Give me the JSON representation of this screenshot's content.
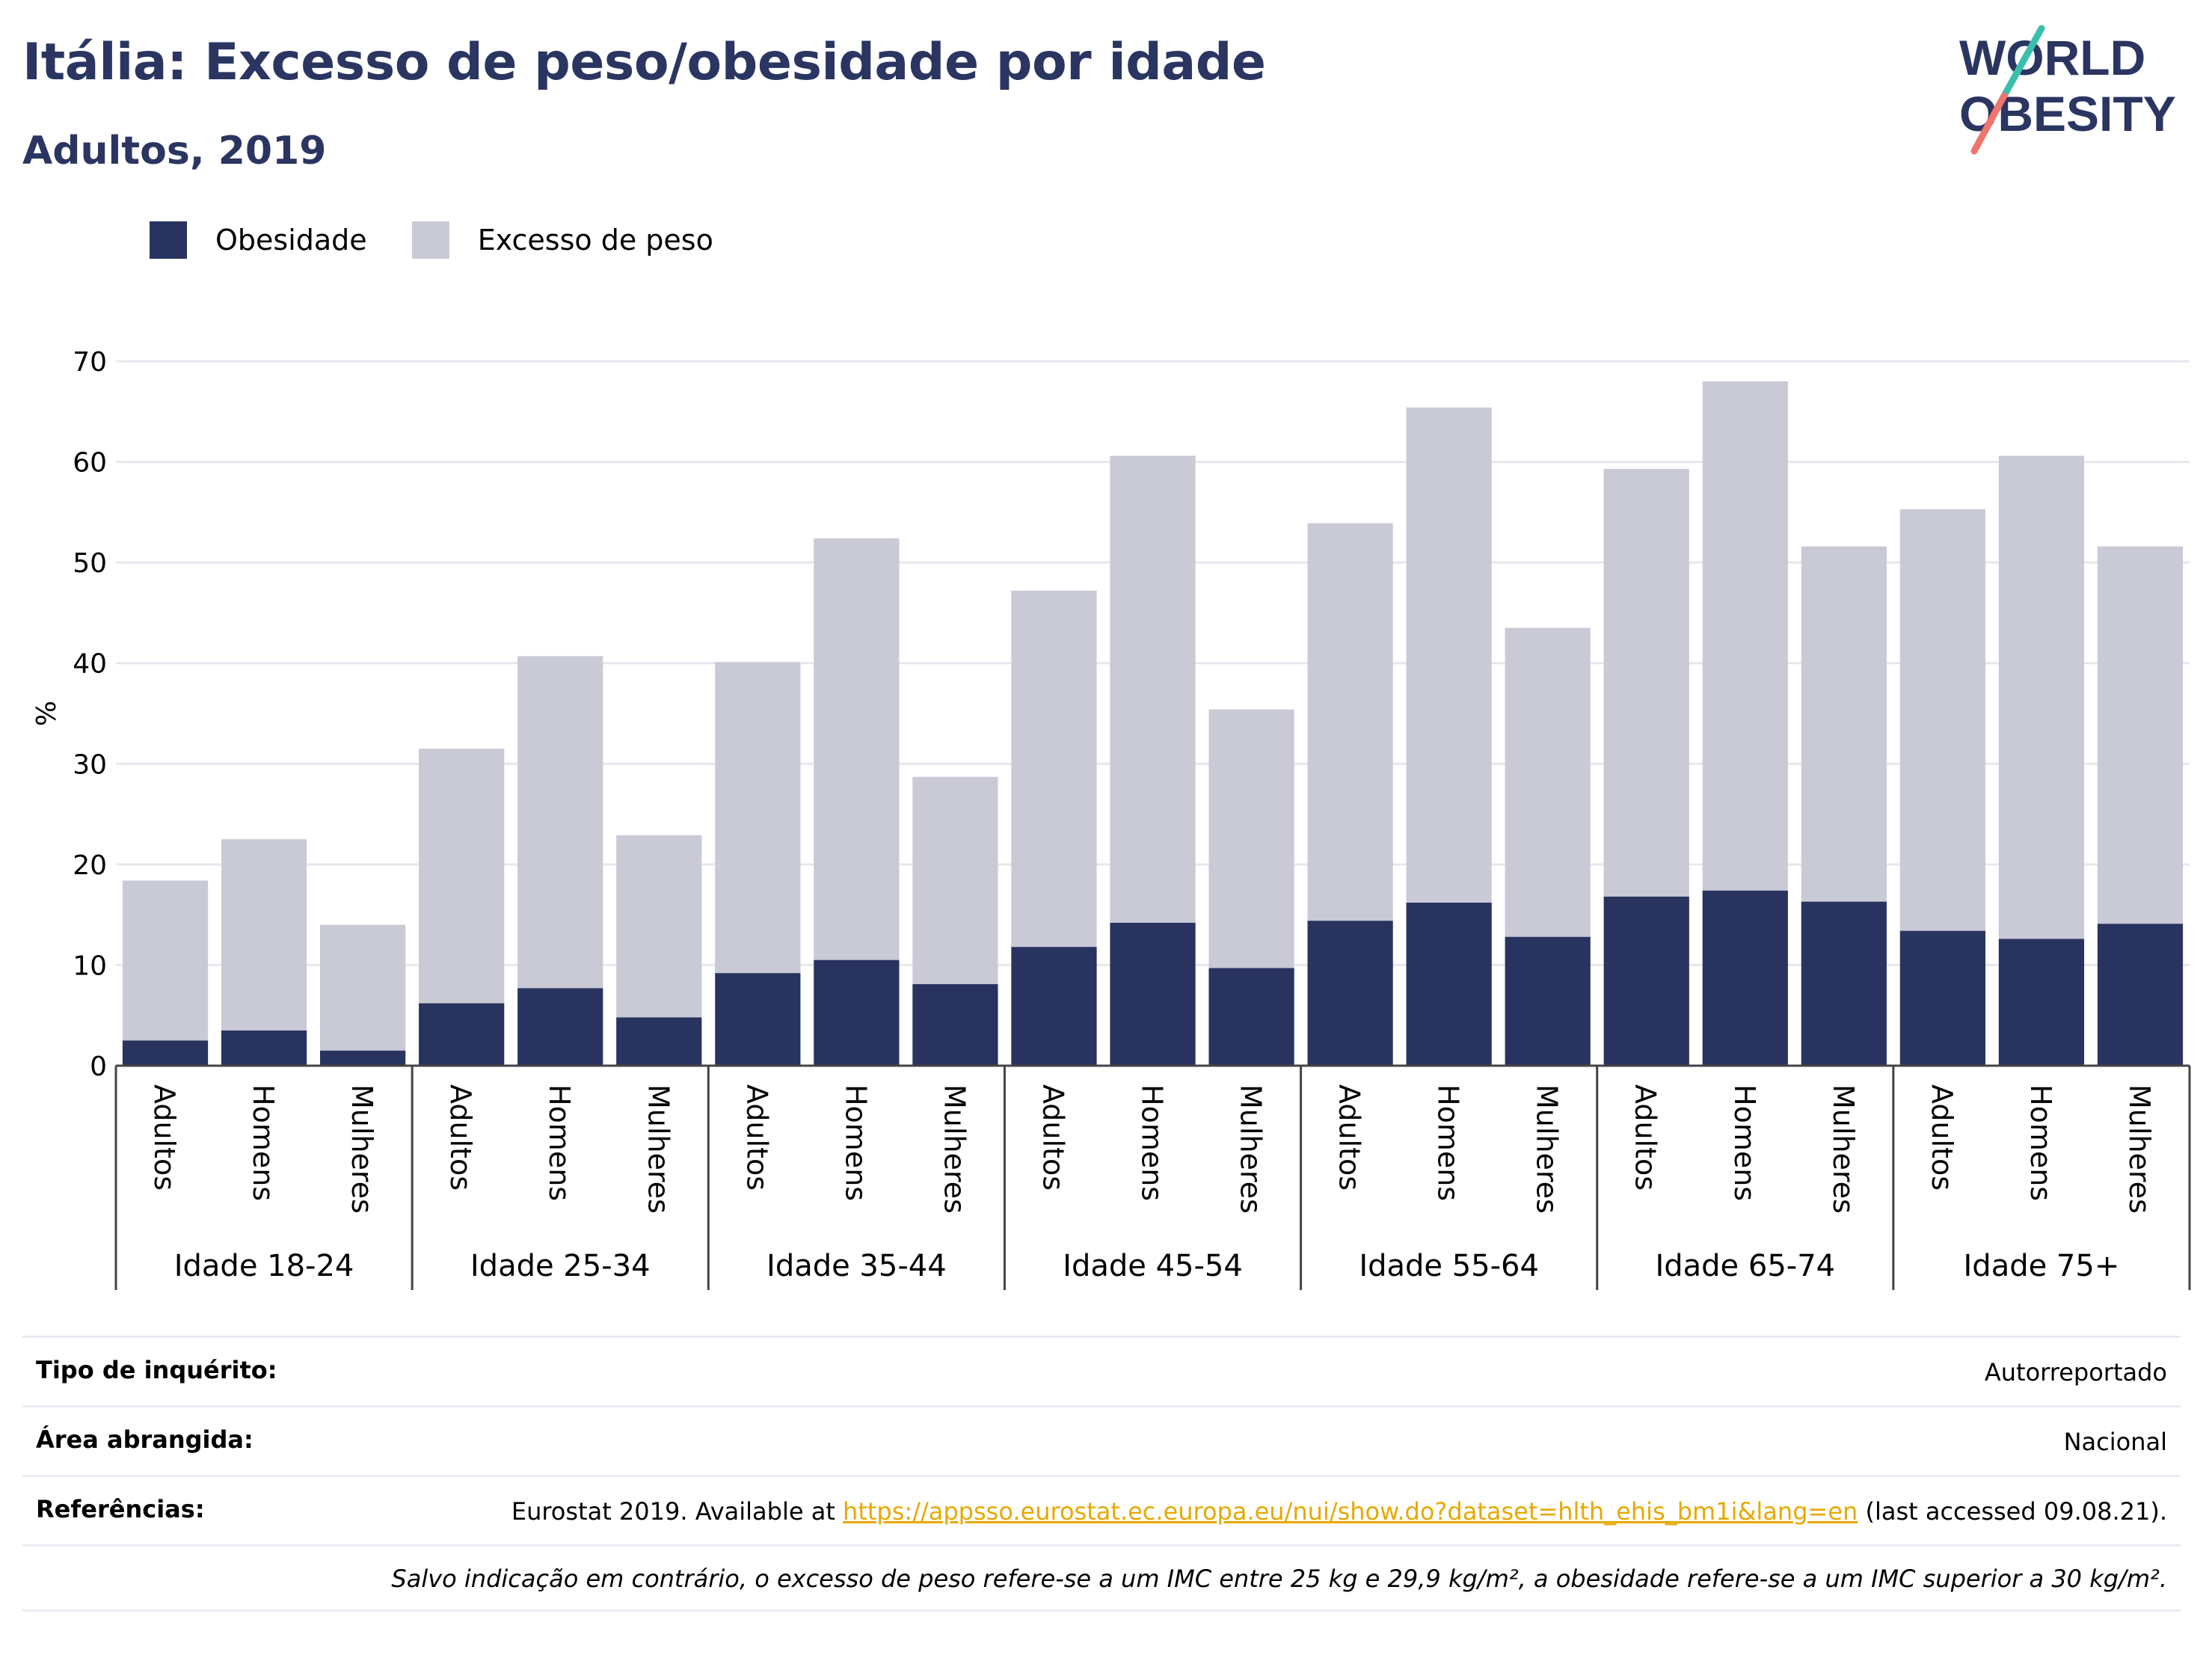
{
  "title": "Itália: Excesso de peso/obesidade por idade",
  "subtitle": "Adultos, 2019",
  "logo": {
    "line1": "WORLD",
    "line2": "OBESITY"
  },
  "legend": [
    {
      "label": "Obesidade",
      "color": "#28335f"
    },
    {
      "label": "Excesso de peso",
      "color": "#c9cad6"
    }
  ],
  "chart_data": {
    "type": "bar",
    "stacked": true,
    "ylabel": "%",
    "ylim": [
      0,
      70
    ],
    "yticks": [
      0,
      10,
      20,
      30,
      40,
      50,
      60,
      70
    ],
    "grid": true,
    "legend_position": "top-left",
    "groups": [
      {
        "name": "Idade 18-24",
        "categories": [
          "Adultos",
          "Homens",
          "Mulheres"
        ],
        "obesity": [
          2.5,
          3.5,
          1.5
        ],
        "total": [
          18.4,
          22.5,
          14.0
        ]
      },
      {
        "name": "Idade 25-34",
        "categories": [
          "Adultos",
          "Homens",
          "Mulheres"
        ],
        "obesity": [
          6.2,
          7.7,
          4.8
        ],
        "total": [
          31.5,
          40.7,
          22.9
        ]
      },
      {
        "name": "Idade 35-44",
        "categories": [
          "Adultos",
          "Homens",
          "Mulheres"
        ],
        "obesity": [
          9.2,
          10.5,
          8.1
        ],
        "total": [
          40.1,
          52.4,
          28.7
        ]
      },
      {
        "name": "Idade 45-54",
        "categories": [
          "Adultos",
          "Homens",
          "Mulheres"
        ],
        "obesity": [
          11.8,
          14.2,
          9.7
        ],
        "total": [
          47.2,
          60.6,
          35.4
        ]
      },
      {
        "name": "Idade 55-64",
        "categories": [
          "Adultos",
          "Homens",
          "Mulheres"
        ],
        "obesity": [
          14.4,
          16.2,
          12.8
        ],
        "total": [
          53.9,
          65.4,
          43.5
        ]
      },
      {
        "name": "Idade 65-74",
        "categories": [
          "Adultos",
          "Homens",
          "Mulheres"
        ],
        "obesity": [
          16.8,
          17.4,
          16.3
        ],
        "total": [
          59.3,
          68.0,
          51.6
        ]
      },
      {
        "name": "Idade 75+",
        "categories": [
          "Adultos",
          "Homens",
          "Mulheres"
        ],
        "obesity": [
          13.4,
          12.6,
          14.1
        ],
        "total": [
          55.3,
          60.6,
          51.6
        ]
      }
    ],
    "series": [
      {
        "name": "Obesidade",
        "color": "#28335f"
      },
      {
        "name": "Excesso de peso",
        "color": "#c9cad6"
      }
    ]
  },
  "info": {
    "survey_label": "Tipo de inquérito:",
    "survey_value": "Autorreportado",
    "area_label": "Área abrangida:",
    "area_value": "Nacional",
    "refs_label": "Referências:",
    "refs_prefix": "Eurostat 2019. Available at ",
    "refs_link": "https://appsso.eurostat.ec.europa.eu/nui/show.do?dataset=hlth_ehis_bm1i&lang=en",
    "refs_suffix": " (last accessed 09.08.21).",
    "note": "Salvo indicação em contrário, o excesso de peso refere-se a um IMC entre 25 kg e 29,9 kg/m², a obesidade refere-se a um IMC superior a 30 kg/m²."
  }
}
